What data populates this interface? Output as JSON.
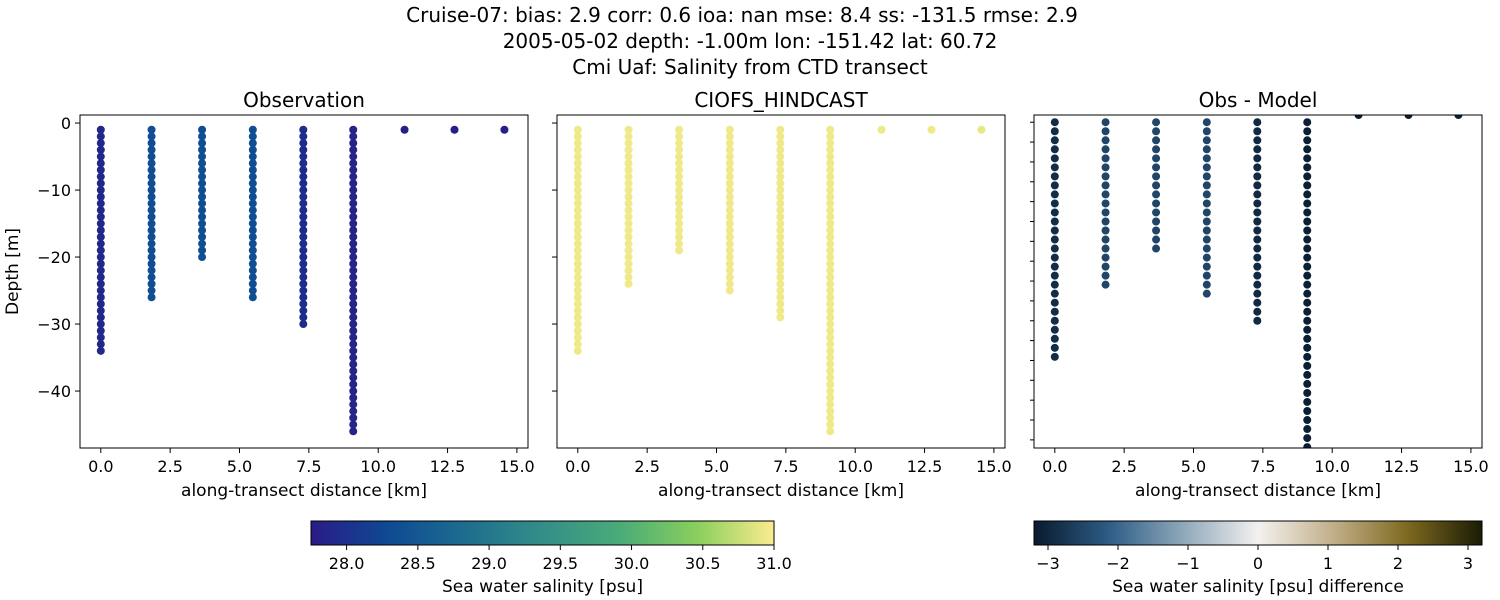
{
  "suptitle": {
    "line1": "Cruise-07: bias: 2.9  corr: 0.6  ioa: nan  mse: 8.4  ss: -131.5  rmse: 2.9",
    "line2": "2005-05-02 depth: -1.00m lon: -151.42 lat: 60.72",
    "line3": "Cmi Uaf: Salinity from CTD transect"
  },
  "chart_data": [
    {
      "type": "scatter",
      "title": "Observation",
      "xlabel": "along-transect distance [km]",
      "ylabel": "Depth [m]",
      "xlim": [
        -0.75,
        15.4
      ],
      "ylim": [
        -48.5,
        1.2
      ],
      "xticks": [
        0.0,
        2.5,
        5.0,
        7.5,
        10.0,
        12.5,
        15.0
      ],
      "xtick_labels": [
        "0.0",
        "2.5",
        "5.0",
        "7.5",
        "10.0",
        "12.5",
        "15.0"
      ],
      "yticks": [
        0,
        -10,
        -20,
        -30,
        -40
      ],
      "ytick_labels": [
        "0",
        "−10",
        "−20",
        "−30",
        "−40"
      ],
      "colormap": "haline",
      "color_range": [
        27.75,
        31.0
      ],
      "profiles": [
        {
          "x": 0.0,
          "top": -1,
          "bottom": -34,
          "value": 27.9
        },
        {
          "x": 1.83,
          "top": -1,
          "bottom": -26,
          "value": 28.35
        },
        {
          "x": 3.65,
          "top": -1,
          "bottom": -20,
          "value": 28.35
        },
        {
          "x": 5.48,
          "top": -1,
          "bottom": -26,
          "value": 28.35
        },
        {
          "x": 7.3,
          "top": -1,
          "bottom": -30,
          "value": 27.95
        },
        {
          "x": 9.1,
          "top": -1,
          "bottom": -46,
          "value": 27.85
        },
        {
          "x": 10.95,
          "top": -1,
          "bottom": -1,
          "value": 27.8
        },
        {
          "x": 12.75,
          "top": -1,
          "bottom": -1,
          "value": 27.8
        },
        {
          "x": 14.55,
          "top": -1,
          "bottom": -1,
          "value": 27.8
        }
      ]
    },
    {
      "type": "scatter",
      "title": "CIOFS_HINDCAST",
      "xlabel": "along-transect distance [km]",
      "xlim": [
        -0.75,
        15.4
      ],
      "ylim": [
        -48.5,
        1.2
      ],
      "xticks": [
        0.0,
        2.5,
        5.0,
        7.5,
        10.0,
        12.5,
        15.0
      ],
      "xtick_labels": [
        "0.0",
        "2.5",
        "5.0",
        "7.5",
        "10.0",
        "12.5",
        "15.0"
      ],
      "yticks": [
        0,
        -10,
        -20,
        -30,
        -40
      ],
      "colormap": "haline",
      "color_range": [
        27.75,
        31.0
      ],
      "profiles": [
        {
          "x": 0.0,
          "top": -1,
          "bottom": -34,
          "value": 30.95
        },
        {
          "x": 1.83,
          "top": -1,
          "bottom": -24,
          "value": 30.95
        },
        {
          "x": 3.65,
          "top": -1,
          "bottom": -19,
          "value": 30.95
        },
        {
          "x": 5.48,
          "top": -1,
          "bottom": -25,
          "value": 30.95
        },
        {
          "x": 7.3,
          "top": -1,
          "bottom": -29,
          "value": 30.95
        },
        {
          "x": 9.1,
          "top": -1,
          "bottom": -46,
          "value": 30.95
        },
        {
          "x": 10.95,
          "top": -1,
          "bottom": -1,
          "value": 30.95
        },
        {
          "x": 12.75,
          "top": -1,
          "bottom": -1,
          "value": 30.95
        },
        {
          "x": 14.55,
          "top": -1,
          "bottom": -1,
          "value": 30.9
        }
      ]
    },
    {
      "type": "scatter",
      "title": "Obs - Model",
      "xlabel": "along-transect distance [km]",
      "xlim": [
        -0.75,
        15.4
      ],
      "ylim": [
        -36.1,
        0.8
      ],
      "xticks": [
        0.0,
        2.5,
        5.0,
        7.5,
        10.0,
        12.5,
        15.0
      ],
      "xtick_labels": [
        "0.0",
        "2.5",
        "5.0",
        "7.5",
        "10.0",
        "12.5",
        "15.0"
      ],
      "colormap": "diff",
      "color_range": [
        -3.2,
        3.2
      ],
      "profiles": [
        {
          "x": 0.0,
          "top": 0,
          "bottom": -26.3,
          "value": -2.9
        },
        {
          "x": 1.83,
          "top": 0,
          "bottom": -18.3,
          "value": -2.5
        },
        {
          "x": 3.65,
          "top": 0,
          "bottom": -14.0,
          "value": -2.5
        },
        {
          "x": 5.48,
          "top": 0,
          "bottom": -19.0,
          "value": -2.5
        },
        {
          "x": 7.3,
          "top": 0,
          "bottom": -22.2,
          "value": -2.95
        },
        {
          "x": 9.1,
          "top": 0,
          "bottom": -36.1,
          "value": -3.1
        },
        {
          "x": 10.95,
          "top": 0.8,
          "bottom": 0.8,
          "value": -3.15
        },
        {
          "x": 12.75,
          "top": 0.8,
          "bottom": 0.8,
          "value": -3.15
        },
        {
          "x": 14.55,
          "top": 0.8,
          "bottom": 0.8,
          "value": -3.1
        }
      ]
    }
  ],
  "colorbars": [
    {
      "label": "Sea water salinity [psu]",
      "range": [
        27.75,
        31.0
      ],
      "colormap": "haline",
      "ticks": [
        28.0,
        28.5,
        29.0,
        29.5,
        30.0,
        30.5,
        31.0
      ],
      "tick_labels": [
        "28.0",
        "28.5",
        "29.0",
        "29.5",
        "30.0",
        "30.5",
        "31.0"
      ]
    },
    {
      "label": "Sea water salinity [psu] difference",
      "range": [
        -3.2,
        3.2
      ],
      "colormap": "diff",
      "ticks": [
        -3,
        -2,
        -1,
        0,
        1,
        2,
        3
      ],
      "tick_labels": [
        "−3",
        "−2",
        "−1",
        "0",
        "1",
        "2",
        "3"
      ]
    }
  ],
  "colormaps": {
    "haline": [
      "#2a1b86",
      "#0e4a93",
      "#1e6d8f",
      "#338e88",
      "#49ab79",
      "#89cf5c",
      "#fbec8e"
    ],
    "diff": [
      "#091a2d",
      "#2d5c86",
      "#8fa8ba",
      "#f3f1ef",
      "#c2b08a",
      "#7e6920",
      "#1a1c05"
    ]
  }
}
